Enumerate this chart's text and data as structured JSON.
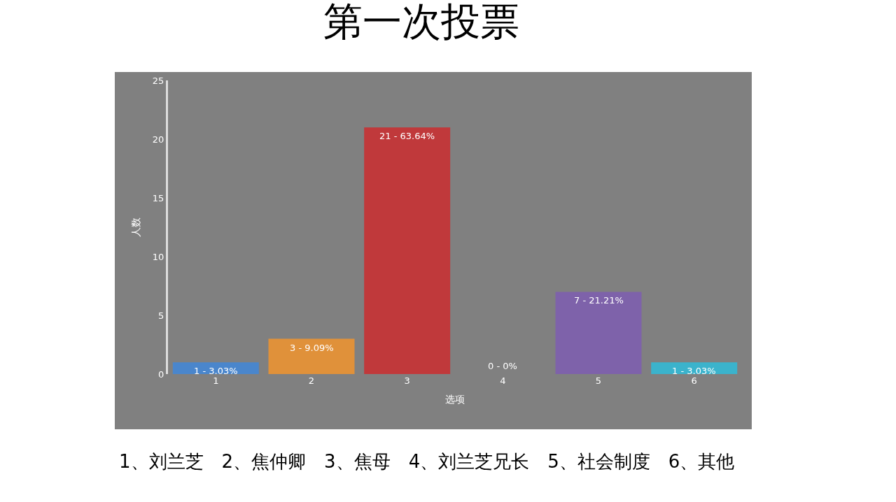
{
  "chart_data": {
    "type": "bar",
    "title": "第一次投票",
    "xlabel": "选项",
    "ylabel": "人数",
    "categories": [
      "1",
      "2",
      "3",
      "4",
      "5",
      "6"
    ],
    "values": [
      1,
      3,
      21,
      0,
      7,
      1
    ],
    "colors": [
      "#4a86cc",
      "#e0913a",
      "#c0393b",
      "#8cbf44",
      "#7e62aa",
      "#3bb3cc"
    ],
    "value_labels": [
      "1 - 3.03%",
      "3 - 9.09%",
      "21 - 63.64%",
      "0 - 0%",
      "7 - 21.21%",
      "1 - 3.03%"
    ],
    "ylim": [
      0,
      25
    ],
    "yticks": [
      0,
      5,
      10,
      15,
      20,
      25
    ],
    "grid": false,
    "legend": false,
    "annotations": [
      "1、刘兰芝　2、焦仲卿　3、焦母　4、刘兰芝兄长　5、社会制度　6、其他"
    ]
  }
}
